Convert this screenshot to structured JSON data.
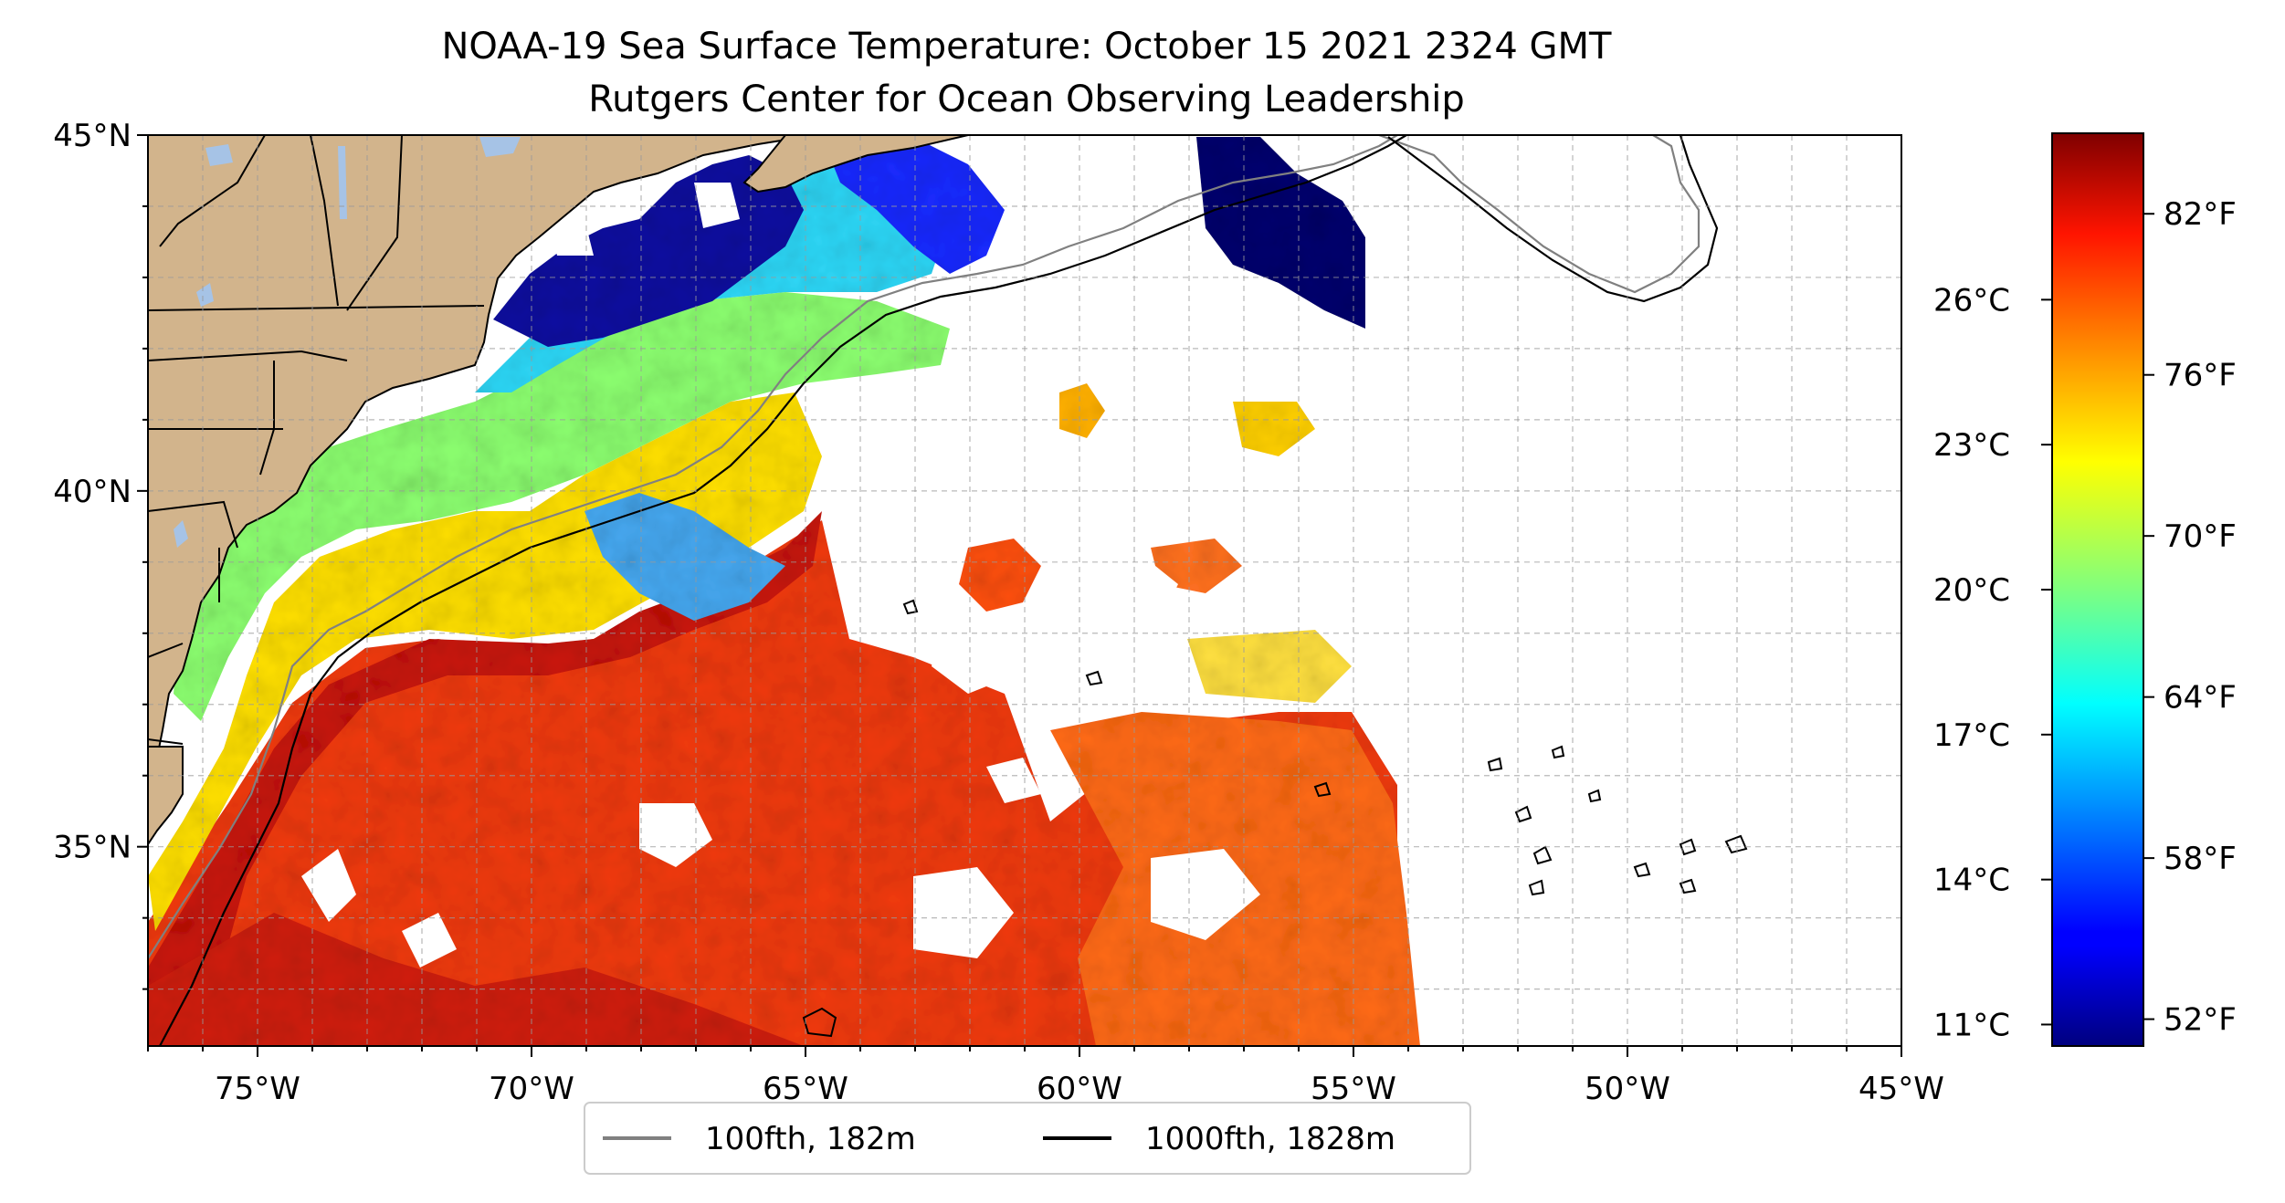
{
  "title": {
    "line1": "NOAA-19 Sea Surface Temperature: October 15 2021 2324 GMT",
    "line2": "Rutgers Center for Ocean Observing Leadership"
  },
  "map": {
    "lon_range": [
      -77,
      -45
    ],
    "lat_range": [
      32.2,
      45
    ],
    "lon_ticks": [
      {
        "value": -75,
        "label": "75°W"
      },
      {
        "value": -70,
        "label": "70°W"
      },
      {
        "value": -65,
        "label": "65°W"
      },
      {
        "value": -60,
        "label": "60°W"
      },
      {
        "value": -55,
        "label": "55°W"
      },
      {
        "value": -50,
        "label": "50°W"
      },
      {
        "value": -45,
        "label": "45°W"
      }
    ],
    "lat_ticks": [
      {
        "value": 45,
        "label": "45°N"
      },
      {
        "value": 40,
        "label": "40°N"
      },
      {
        "value": 35,
        "label": "35°N"
      }
    ],
    "grid": true,
    "colors": {
      "land": "#d2b48c",
      "lakes": "#a6c3e6",
      "contour_100": "#808080",
      "contour_1000": "#000000"
    }
  },
  "legend": {
    "placement": "bottom-center",
    "items": [
      {
        "label": "100fth, 182m",
        "color": "#808080"
      },
      {
        "label": "1000fth, 1828m",
        "color": "#000000"
      }
    ]
  },
  "colorbar": {
    "colormap": "jet",
    "range_f": [
      51,
      85
    ],
    "fahrenheit_ticks": [
      {
        "value": 52,
        "label": "52°F"
      },
      {
        "value": 58,
        "label": "58°F"
      },
      {
        "value": 64,
        "label": "64°F"
      },
      {
        "value": 70,
        "label": "70°F"
      },
      {
        "value": 76,
        "label": "76°F"
      },
      {
        "value": 82,
        "label": "82°F"
      }
    ],
    "celsius_ticks": [
      {
        "value": 11,
        "label": "11°C"
      },
      {
        "value": 14,
        "label": "14°C"
      },
      {
        "value": 17,
        "label": "17°C"
      },
      {
        "value": 20,
        "label": "20°C"
      },
      {
        "value": 23,
        "label": "23°C"
      },
      {
        "value": 26,
        "label": "26°C"
      }
    ]
  }
}
